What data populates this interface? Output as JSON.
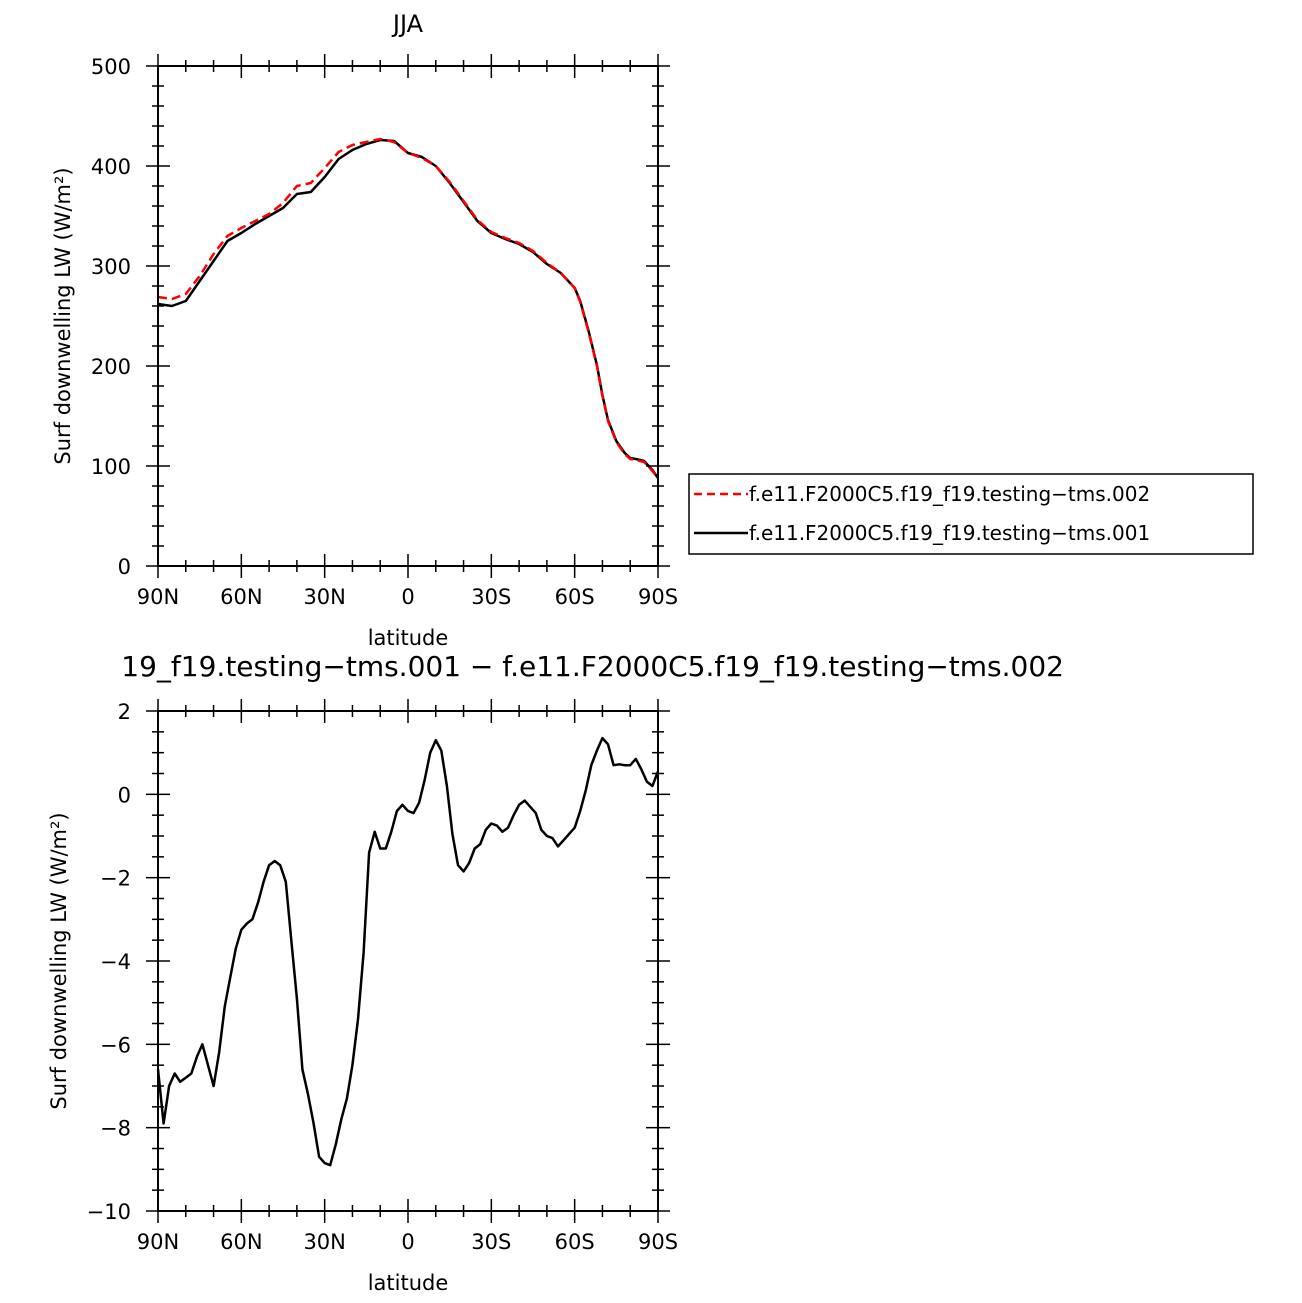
{
  "panel_top": {
    "title": "JJA",
    "xlabel": "latitude",
    "ylabel": "Surf downwelling LW (W/m²)",
    "legend": [
      {
        "label": "f.e11.F2000C5.f19_f19.testing−tms.002",
        "color": "#ff0000",
        "style": "dashed"
      },
      {
        "label": "f.e11.F2000C5.f19_f19.testing−tms.001",
        "color": "#000000",
        "style": "solid"
      }
    ]
  },
  "panel_bottom": {
    "title": "19_f19.testing−tms.001 − f.e11.F2000C5.f19_f19.testing−tms.002",
    "xlabel": "latitude",
    "ylabel": "Surf downwelling LW (W/m²)"
  },
  "chart_data": [
    {
      "type": "line",
      "title": "JJA",
      "xlabel": "latitude",
      "ylabel": "Surf downwelling LW (W/m²)",
      "xlim": [
        -90,
        90
      ],
      "ylim": [
        0,
        500
      ],
      "x_ticks": [
        -90,
        -60,
        -30,
        0,
        30,
        60,
        90
      ],
      "x_tick_labels": [
        "90N",
        "60N",
        "30N",
        "0",
        "30S",
        "60S",
        "90S"
      ],
      "y_ticks": [
        0,
        100,
        200,
        300,
        400,
        500
      ],
      "y_tick_labels": [
        "0",
        "100",
        "200",
        "300",
        "400",
        "500"
      ],
      "legend_position": "right",
      "series": [
        {
          "name": "f.e11.F2000C5.f19_f19.testing−tms.002",
          "color": "#ff0000",
          "dash": "dashed",
          "x": [
            -90,
            -85,
            -80,
            -75,
            -70,
            -65,
            -60,
            -55,
            -50,
            -45,
            -40,
            -35,
            -30,
            -25,
            -20,
            -15,
            -10,
            -5,
            0,
            5,
            10,
            15,
            20,
            25,
            30,
            35,
            40,
            45,
            50,
            55,
            60,
            62,
            65,
            68,
            70,
            72,
            75,
            78,
            80,
            82,
            85,
            88,
            90
          ],
          "y": [
            269,
            267,
            272,
            290,
            312,
            330,
            338,
            345,
            352,
            363,
            380,
            383,
            398,
            414,
            421,
            424,
            427,
            424,
            413,
            408,
            400,
            384,
            365,
            346,
            334,
            328,
            323,
            315,
            303,
            293,
            278,
            264,
            234,
            200,
            170,
            145,
            124,
            112,
            107,
            106,
            104,
            95,
            88
          ]
        },
        {
          "name": "f.e11.F2000C5.f19_f19.testing−tms.001",
          "color": "#000000",
          "dash": "solid",
          "x": [
            -90,
            -85,
            -80,
            -75,
            -70,
            -65,
            -60,
            -55,
            -50,
            -45,
            -40,
            -35,
            -30,
            -25,
            -20,
            -15,
            -10,
            -5,
            0,
            5,
            10,
            15,
            20,
            25,
            30,
            35,
            40,
            45,
            50,
            55,
            60,
            62,
            65,
            68,
            70,
            72,
            75,
            78,
            80,
            82,
            85,
            88,
            90
          ],
          "y": [
            262,
            260,
            265,
            285,
            305,
            325,
            333,
            342,
            350,
            358,
            372,
            374,
            389,
            407,
            416,
            422,
            426,
            425,
            413,
            409,
            400,
            383,
            364,
            345,
            333,
            327,
            322,
            314,
            302,
            293,
            278,
            265,
            235,
            201,
            171,
            146,
            125,
            113,
            108,
            107,
            105,
            96,
            88
          ]
        }
      ]
    },
    {
      "type": "line",
      "title": "19_f19.testing−tms.001 − f.e11.F2000C5.f19_f19.testing−tms.002",
      "xlabel": "latitude",
      "ylabel": "Surf downwelling LW (W/m²)",
      "xlim": [
        -90,
        90
      ],
      "ylim": [
        -10,
        2
      ],
      "x_ticks": [
        -90,
        -60,
        -30,
        0,
        30,
        60,
        90
      ],
      "x_tick_labels": [
        "90N",
        "60N",
        "30N",
        "0",
        "30S",
        "60S",
        "90S"
      ],
      "y_ticks": [
        -10,
        -8,
        -6,
        -4,
        -2,
        0,
        2
      ],
      "y_tick_labels": [
        "−10",
        "−8",
        "−6",
        "−4",
        "−2",
        "0",
        "2"
      ],
      "series": [
        {
          "color": "#000000",
          "dash": "solid",
          "x": [
            -90,
            -88,
            -86,
            -84,
            -82,
            -80,
            -78,
            -76,
            -74,
            -72,
            -70,
            -68,
            -66,
            -64,
            -62,
            -60,
            -58,
            -56,
            -54,
            -52,
            -50,
            -48,
            -46,
            -44,
            -42,
            -40,
            -38,
            -36,
            -34,
            -32,
            -30,
            -28,
            -26,
            -24,
            -22,
            -20,
            -18,
            -16,
            -14,
            -12,
            -10,
            -8,
            -6,
            -4,
            -2,
            0,
            2,
            4,
            6,
            8,
            10,
            12,
            14,
            16,
            18,
            20,
            22,
            24,
            26,
            28,
            30,
            32,
            34,
            36,
            38,
            40,
            42,
            44,
            46,
            48,
            50,
            52,
            54,
            56,
            58,
            60,
            62,
            64,
            66,
            68,
            70,
            72,
            74,
            76,
            78,
            80,
            82,
            84,
            86,
            88,
            90
          ],
          "y": [
            -6.6,
            -7.9,
            -7.0,
            -6.7,
            -6.9,
            -6.8,
            -6.7,
            -6.3,
            -6.0,
            -6.5,
            -7.0,
            -6.2,
            -5.1,
            -4.4,
            -3.7,
            -3.25,
            -3.1,
            -3.0,
            -2.6,
            -2.1,
            -1.7,
            -1.6,
            -1.7,
            -2.1,
            -3.5,
            -4.9,
            -6.6,
            -7.2,
            -7.9,
            -8.7,
            -8.85,
            -8.9,
            -8.4,
            -7.8,
            -7.3,
            -6.5,
            -5.4,
            -3.8,
            -1.4,
            -0.9,
            -1.3,
            -1.3,
            -0.9,
            -0.4,
            -0.25,
            -0.4,
            -0.45,
            -0.2,
            0.35,
            1.0,
            1.3,
            1.05,
            0.2,
            -0.95,
            -1.7,
            -1.85,
            -1.65,
            -1.3,
            -1.2,
            -0.85,
            -0.7,
            -0.75,
            -0.9,
            -0.8,
            -0.5,
            -0.25,
            -0.15,
            -0.3,
            -0.45,
            -0.85,
            -1.0,
            -1.05,
            -1.25,
            -1.1,
            -0.95,
            -0.8,
            -0.4,
            0.1,
            0.7,
            1.05,
            1.35,
            1.2,
            0.7,
            0.72,
            0.7,
            0.7,
            0.85,
            0.6,
            0.3,
            0.2,
            0.55
          ]
        }
      ]
    }
  ]
}
